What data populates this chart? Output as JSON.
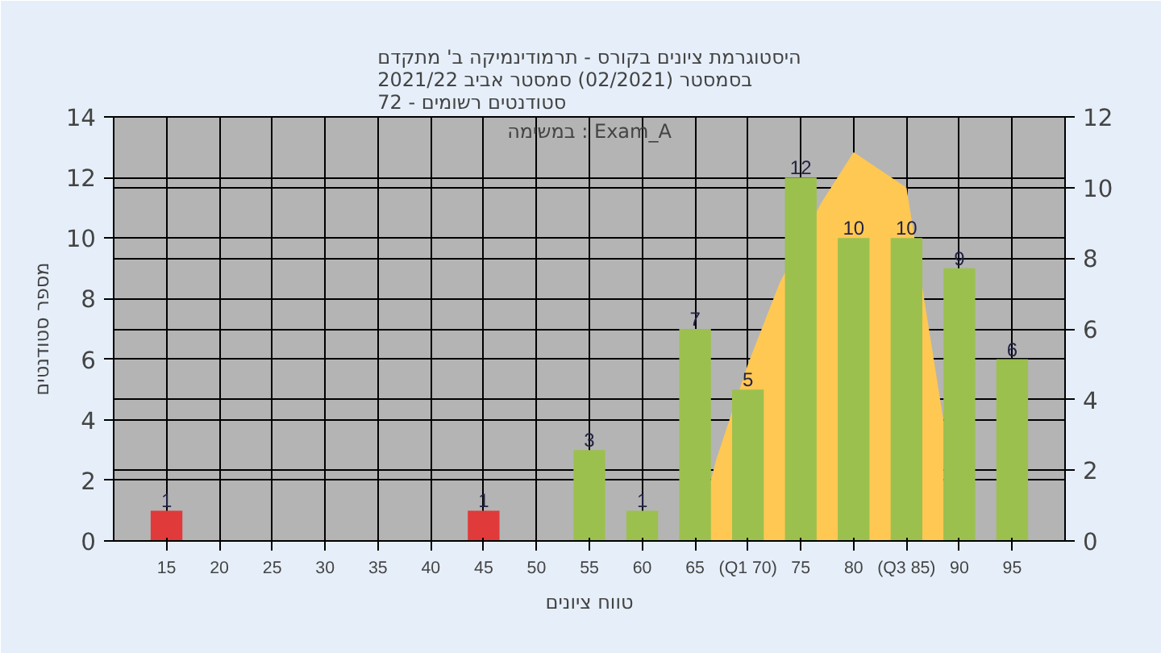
{
  "chart_data": {
    "type": "bar",
    "title": "היסטוגרמת ציונים בקורס - תרמודינמיקה ב' מתקדם\nבסמסטר  (02/2021)  סמסטר אביב 2021/22\nסטודנטים רשומים - 72",
    "xlabel": "טווח ציונים",
    "ylabel": "מספר סטודנטים",
    "annotations": [
      "במשימה : Exam_A"
    ],
    "x": [
      15,
      45,
      55,
      60,
      65,
      70,
      75,
      80,
      85,
      90,
      95
    ],
    "series": [
      {
        "colors": [
          "#e03a3a",
          "#e03a3a",
          "#9cc04e",
          "#9cc04e",
          "#9cc04e",
          "#9cc04e",
          "#9cc04e",
          "#9cc04e",
          "#9cc04e",
          "#9cc04e",
          "#9cc04e"
        ],
        "values": [
          1,
          1,
          3,
          1,
          7,
          5,
          12,
          10,
          10,
          9,
          6
        ],
        "value_labels": [
          "1",
          "1",
          "3",
          "1",
          "7",
          "5",
          "12",
          "10",
          "10",
          "9",
          "6"
        ]
      },
      {
        "type": "area",
        "axis": "y2",
        "color": "#ffc853",
        "x": [
          65,
          67,
          70,
          73,
          77,
          80,
          85,
          88.5,
          88.5
        ],
        "values": [
          0,
          2.3,
          5,
          7.3,
          9.6,
          11,
          10,
          3.4,
          0
        ]
      }
    ],
    "xlim": [
      10,
      100
    ],
    "xticks": [
      15,
      20,
      25,
      30,
      35,
      40,
      45,
      50,
      55,
      60,
      65,
      {
        "value": 70,
        "label": "(Q1 70)"
      },
      75,
      80,
      {
        "value": 85,
        "label": "(Q3 85)"
      },
      90,
      95
    ],
    "ylim": [
      0,
      14
    ],
    "yticks": [
      0,
      2,
      4,
      6,
      8,
      10,
      12,
      14
    ],
    "y2lim": [
      0,
      12
    ],
    "y2ticks": [
      0,
      2,
      4,
      6,
      8,
      10,
      12
    ],
    "grid": true
  }
}
